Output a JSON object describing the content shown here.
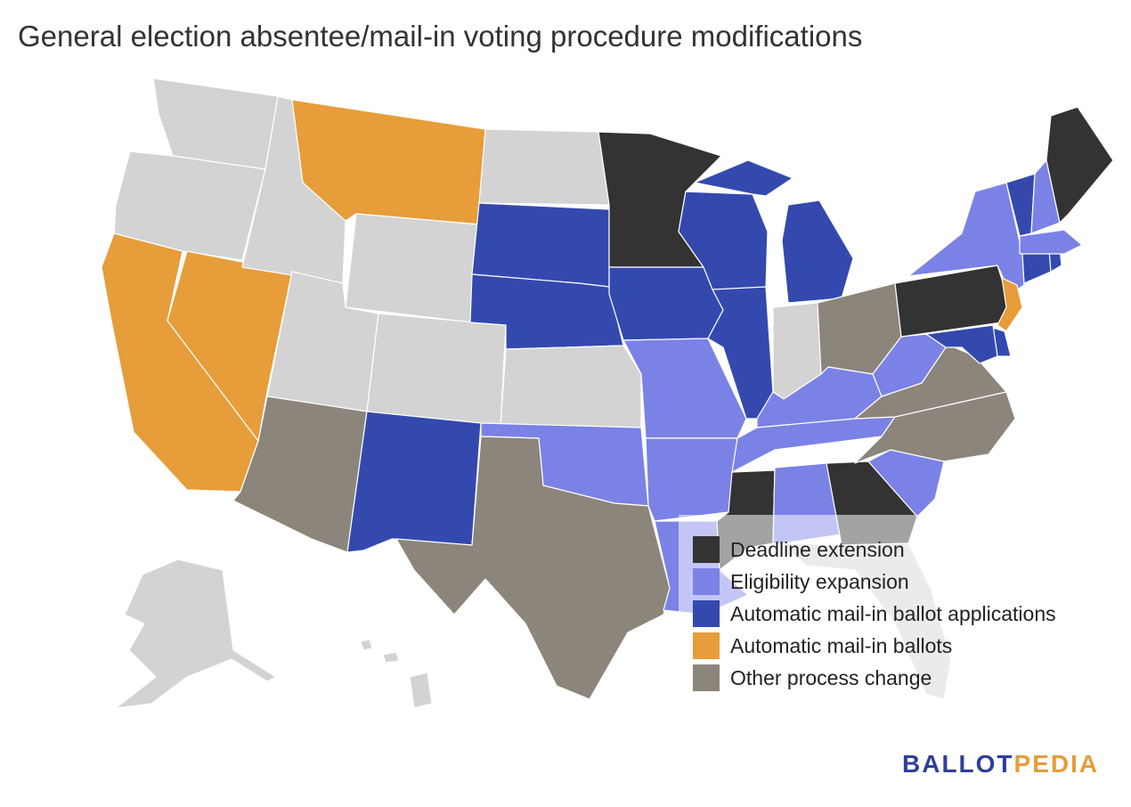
{
  "title": "General election absentee/mail-in voting procedure modifications",
  "categories": {
    "deadline": {
      "label": "Deadline extension",
      "color": "#333333"
    },
    "eligibility": {
      "label": "Eligibility expansion",
      "color": "#7b82e6"
    },
    "applications": {
      "label": "Automatic mail-in ballot applications",
      "color": "#3449ae"
    },
    "ballots": {
      "label": "Automatic mail-in ballots",
      "color": "#e69d3a"
    },
    "other": {
      "label": "Other process change",
      "color": "#8b857b"
    },
    "none": {
      "color": "#d3d3d3"
    }
  },
  "state_categories": {
    "WA": "none",
    "OR": "none",
    "CA": "ballots",
    "NV": "ballots",
    "ID": "none",
    "MT": "ballots",
    "WY": "none",
    "UT": "none",
    "AZ": "other",
    "CO": "none",
    "NM": "applications",
    "ND": "none",
    "SD": "applications",
    "NE": "applications",
    "KS": "none",
    "OK": "eligibility",
    "TX": "other",
    "MN": "deadline",
    "IA": "applications",
    "MO": "eligibility",
    "AR": "eligibility",
    "LA": "eligibility",
    "WI": "applications",
    "IL": "applications",
    "MI": "applications",
    "IN": "none",
    "OH": "other",
    "KY": "eligibility",
    "TN": "eligibility",
    "MS": "deadline",
    "AL": "eligibility",
    "GA": "deadline",
    "FL": "none",
    "SC": "eligibility",
    "NC": "other",
    "VA": "other",
    "WV": "eligibility",
    "PA": "deadline",
    "NY": "eligibility",
    "NJ": "ballots",
    "DE": "applications",
    "MD": "applications",
    "CT": "applications",
    "RI": "applications",
    "MA": "eligibility",
    "VT": "applications",
    "NH": "eligibility",
    "ME": "deadline",
    "AK": "none",
    "HI": "none"
  },
  "brand": {
    "part1": "BALLOT",
    "part2": "PEDIA",
    "color1": "#2f3f9c",
    "color2": "#e69d3a"
  }
}
